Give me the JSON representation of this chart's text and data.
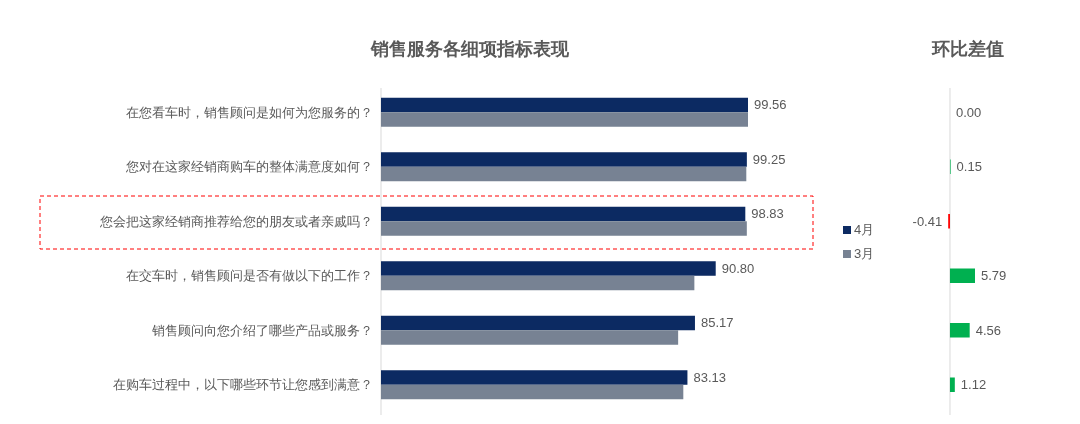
{
  "chart_data": [
    {
      "type": "bar",
      "orientation": "horizontal",
      "title": "销售服务各细项指标表现",
      "categories": [
        "在您看车时，销售顾问是如何为您服务的？",
        "您对在这家经销商购车的整体满意度如何？",
        "您会把这家经销商推荐给您的朋友或者亲戚吗？",
        "在交车时，销售顾问是否有做以下的工作？",
        "销售顾问向您介绍了哪些产品或服务？",
        "在购车过程中，以下哪些环节让您感到满意？"
      ],
      "series": [
        {
          "name": "4月",
          "color": "#0c2a62",
          "values": [
            99.56,
            99.25,
            98.83,
            90.8,
            85.17,
            83.13
          ],
          "value_labels": [
            "99.56",
            "99.25",
            "98.83",
            "90.80",
            "85.17",
            "83.13"
          ]
        },
        {
          "name": "3月",
          "color": "#778293",
          "values": [
            99.56,
            99.1,
            99.24,
            85.01,
            80.61,
            82.01
          ]
        }
      ],
      "legend": "right"
    },
    {
      "type": "bar",
      "orientation": "horizontal",
      "title": "环比差值",
      "categories": [
        null,
        null,
        null,
        null,
        null,
        null
      ],
      "values": [
        0.0,
        0.15,
        -0.41,
        5.79,
        4.56,
        1.12
      ],
      "colors": [
        "#00b050",
        "#00b050",
        "#ff0000",
        "#00b050",
        "#00b050",
        "#00b050"
      ],
      "value_labels": [
        "0.00",
        "0.15",
        "-0.41",
        "5.79",
        "4.56",
        "1.12"
      ]
    }
  ]
}
